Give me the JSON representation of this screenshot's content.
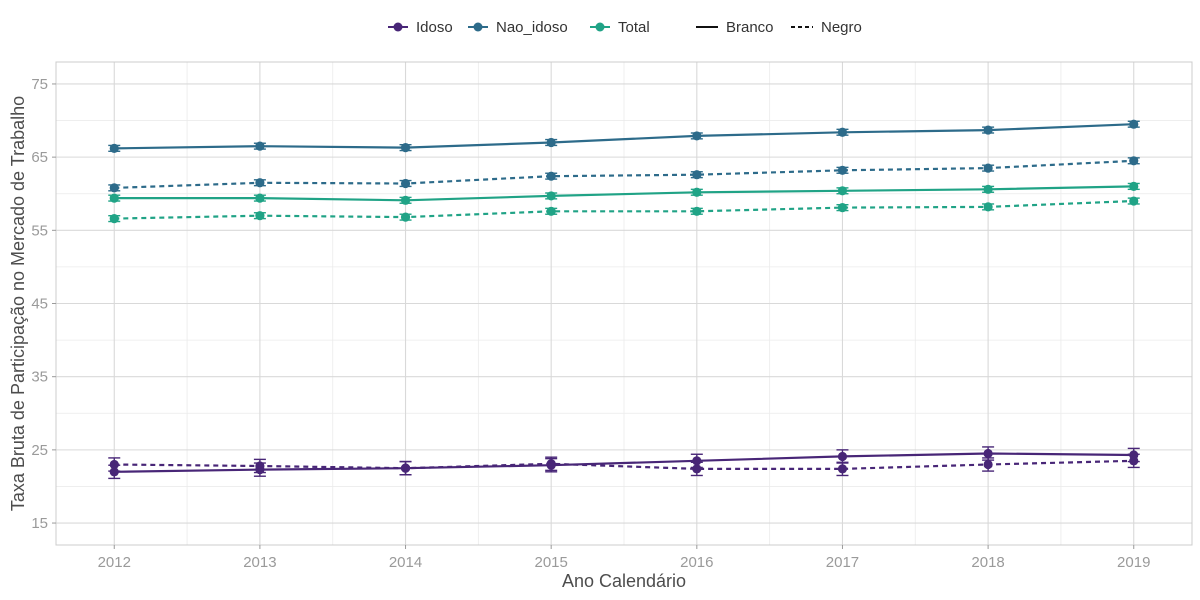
{
  "chart_data": {
    "type": "line",
    "xlabel": "Ano Calendário",
    "ylabel": "Taxa Bruta de Participação no Mercado de Trabalho",
    "x": [
      2012,
      2013,
      2014,
      2015,
      2016,
      2017,
      2018,
      2019
    ],
    "xlim": [
      2011.6,
      2019.4
    ],
    "ylim": [
      12,
      78
    ],
    "yticks": [
      15,
      25,
      35,
      45,
      55,
      65,
      75
    ],
    "grid": true,
    "legend_position": "top",
    "color_legend": {
      "entries": [
        {
          "name": "Idoso",
          "color": "#482677"
        },
        {
          "name": "Nao_idoso",
          "color": "#2D6B8A"
        },
        {
          "name": "Total",
          "color": "#20A386"
        }
      ]
    },
    "linetype_legend": {
      "entries": [
        {
          "name": "Branco",
          "dash": "solid"
        },
        {
          "name": "Negro",
          "dash": "dashed"
        }
      ]
    },
    "series": [
      {
        "group": "Nao_idoso",
        "race": "Branco",
        "color": "#2D6B8A",
        "dash": "solid",
        "values": [
          66.2,
          66.5,
          66.3,
          67.0,
          67.9,
          68.4,
          68.7,
          69.5
        ],
        "err": 0.4
      },
      {
        "group": "Nao_idoso",
        "race": "Negro",
        "color": "#2D6B8A",
        "dash": "dashed",
        "values": [
          60.8,
          61.5,
          61.4,
          62.4,
          62.6,
          63.2,
          63.5,
          64.5
        ],
        "err": 0.4
      },
      {
        "group": "Total",
        "race": "Branco",
        "color": "#20A386",
        "dash": "solid",
        "values": [
          59.4,
          59.4,
          59.1,
          59.7,
          60.2,
          60.4,
          60.6,
          61.0
        ],
        "err": 0.4
      },
      {
        "group": "Total",
        "race": "Negro",
        "color": "#20A386",
        "dash": "dashed",
        "values": [
          56.6,
          57.0,
          56.8,
          57.6,
          57.6,
          58.1,
          58.2,
          59.0
        ],
        "err": 0.4
      },
      {
        "group": "Idoso",
        "race": "Branco",
        "color": "#482677",
        "dash": "solid",
        "values": [
          22.0,
          22.3,
          22.5,
          22.9,
          23.5,
          24.1,
          24.5,
          24.3
        ],
        "err": 0.9
      },
      {
        "group": "Idoso",
        "race": "Negro",
        "color": "#482677",
        "dash": "dashed",
        "values": [
          23.0,
          22.8,
          22.5,
          23.1,
          22.4,
          22.4,
          23.0,
          23.5
        ],
        "err": 0.9
      }
    ]
  }
}
